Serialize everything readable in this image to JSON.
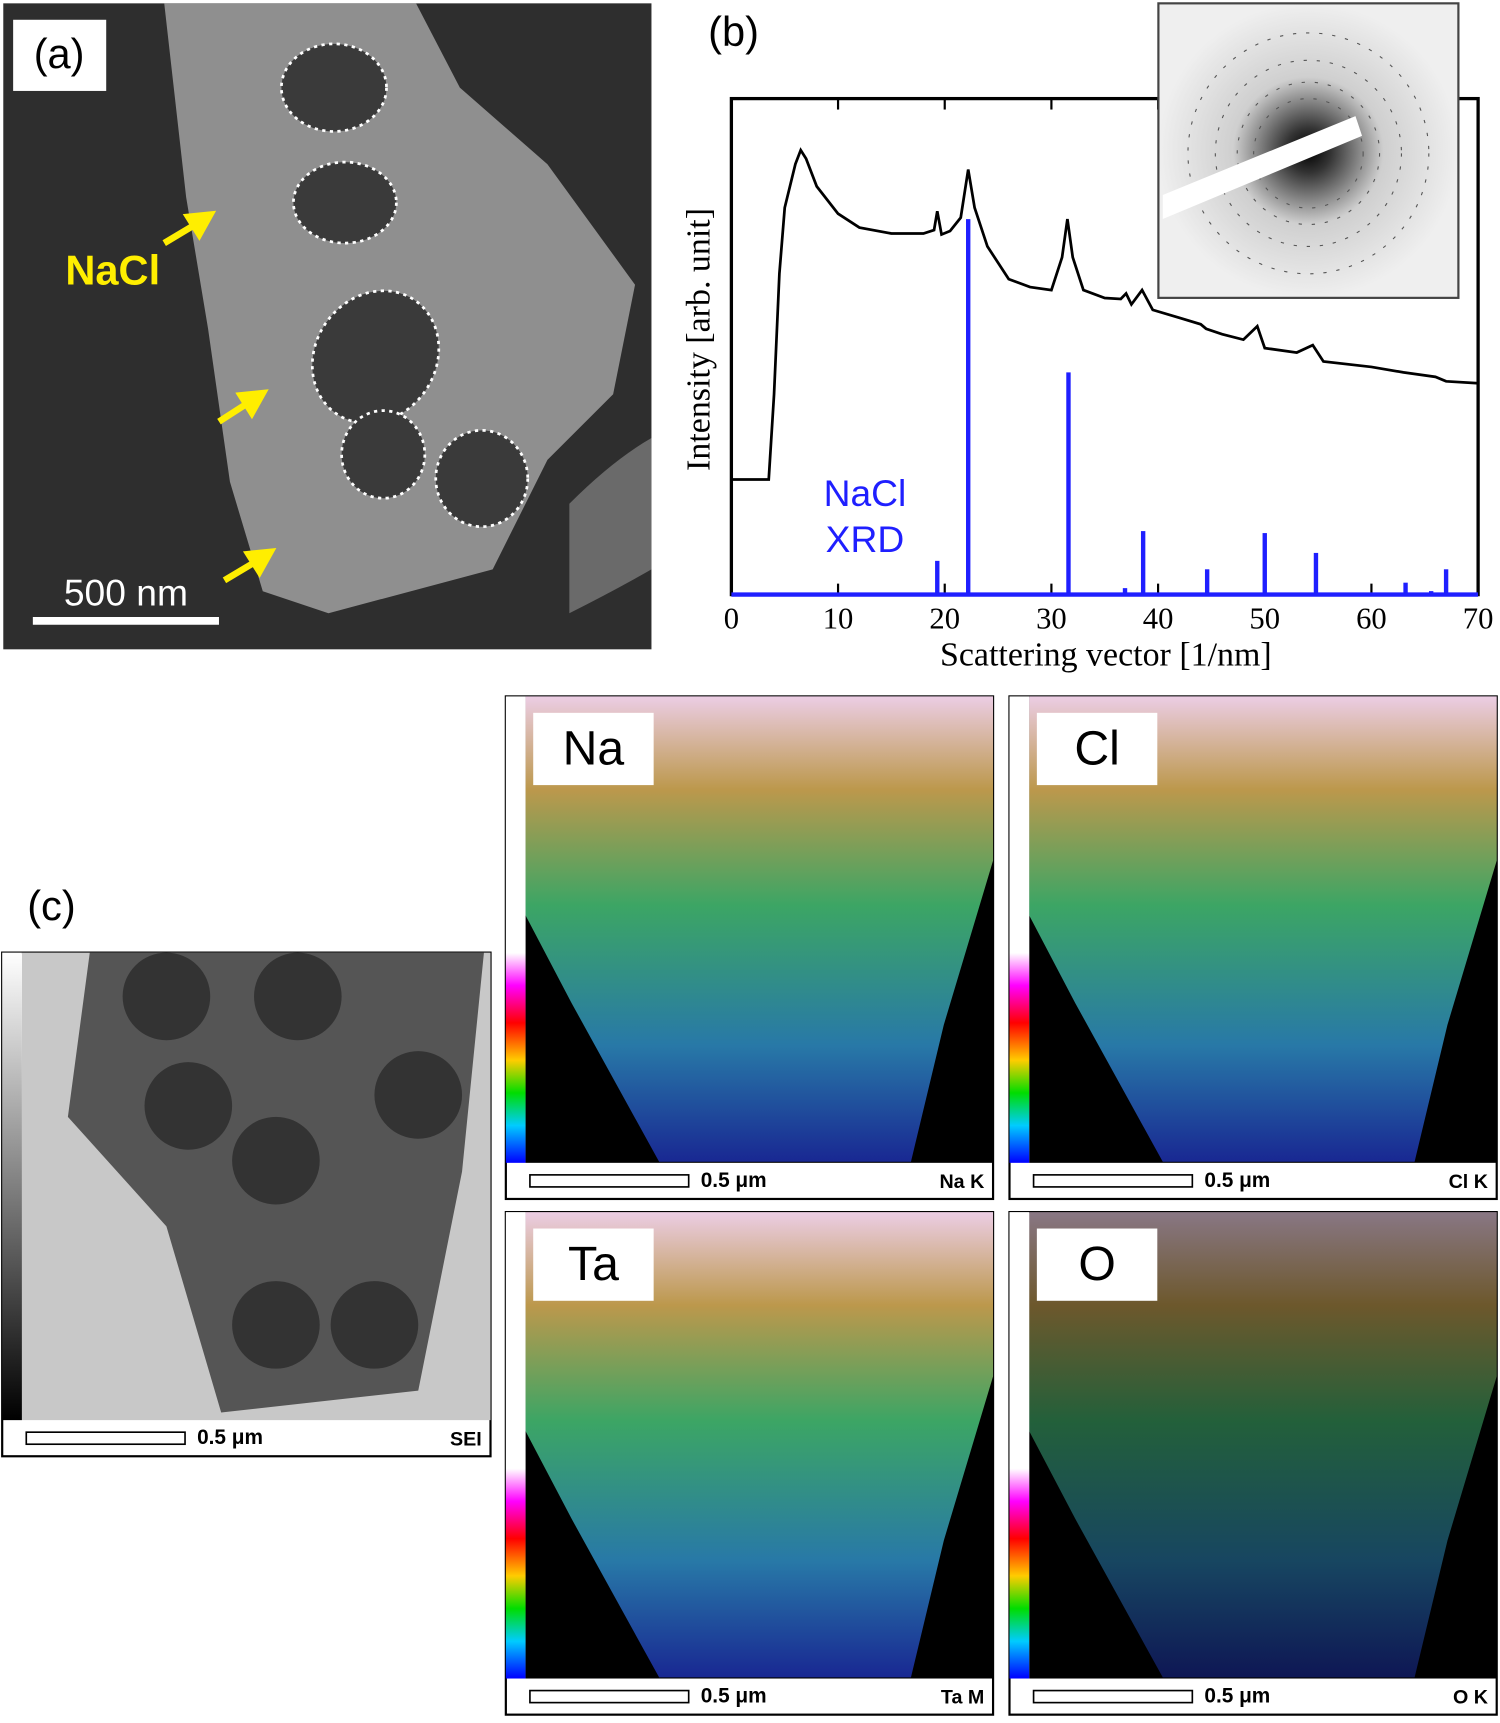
{
  "panels": {
    "a": {
      "label": "(a)",
      "annotation": "NaCl",
      "scale_bar": "500 nm"
    },
    "c": {
      "label": "(c)",
      "maps": [
        {
          "scale_bar": "0.5 μm",
          "signal": "SEI"
        },
        {
          "element": "Na",
          "scale_bar": "0.5 μm",
          "signal": "Na K"
        },
        {
          "element": "Cl",
          "scale_bar": "0.5 μm",
          "signal": "Cl K"
        },
        {
          "element": "Ta",
          "scale_bar": "0.5 μm",
          "signal": "Ta M"
        },
        {
          "element": "O",
          "scale_bar": "0.5 μm",
          "signal": "O K"
        }
      ]
    }
  },
  "chart_data": {
    "type": "line",
    "panel_label": "(b)",
    "xlabel": "Scattering vector [1/nm]",
    "ylabel": "Intensity [arb. unit]",
    "xlim": [
      0,
      70
    ],
    "xticks": [
      0,
      10,
      20,
      30,
      40,
      50,
      60,
      70
    ],
    "ylim": [
      0,
      100
    ],
    "series": [
      {
        "color": "#000000",
        "x": [
          0,
          3.5,
          4,
          4.5,
          5,
          6,
          6.5,
          7,
          8,
          10,
          12,
          15,
          18,
          19,
          19.3,
          19.7,
          20.5,
          21.5,
          22.2,
          22.8,
          24,
          26,
          28,
          30,
          31,
          31.5,
          32,
          33,
          35,
          36.5,
          37,
          37.5,
          38.5,
          39.5,
          42,
          44,
          44.5,
          46,
          48,
          49.3,
          50,
          53,
          54.5,
          55.5,
          60,
          63,
          66,
          67,
          70
        ],
        "values": [
          23.2,
          23.2,
          40.4,
          64.7,
          78,
          86.8,
          89.6,
          87.9,
          82.3,
          76.8,
          74,
          72.8,
          72.8,
          73.5,
          77.3,
          72.6,
          73.3,
          76,
          85.7,
          78,
          70.2,
          63.6,
          62,
          61.4,
          68,
          75.7,
          68,
          61.4,
          59.8,
          59.6,
          60.7,
          58.5,
          61.4,
          57.4,
          55.8,
          54.5,
          53.6,
          52.5,
          51.4,
          54.1,
          49.7,
          48.8,
          50.3,
          47,
          45.9,
          44.8,
          43.9,
          43,
          42.6
        ]
      },
      {
        "name": "NaCl XRD",
        "color": "#1f1fff",
        "type": "bar",
        "x": [
          19.3,
          22.2,
          31.6,
          36.9,
          38.6,
          44.6,
          50,
          54.8,
          63.2,
          65.6,
          67
        ],
        "values": [
          6.8,
          75.7,
          44.8,
          1.3,
          12.8,
          5.1,
          12.4,
          8.4,
          2.4,
          0.7,
          5.1
        ]
      }
    ]
  }
}
